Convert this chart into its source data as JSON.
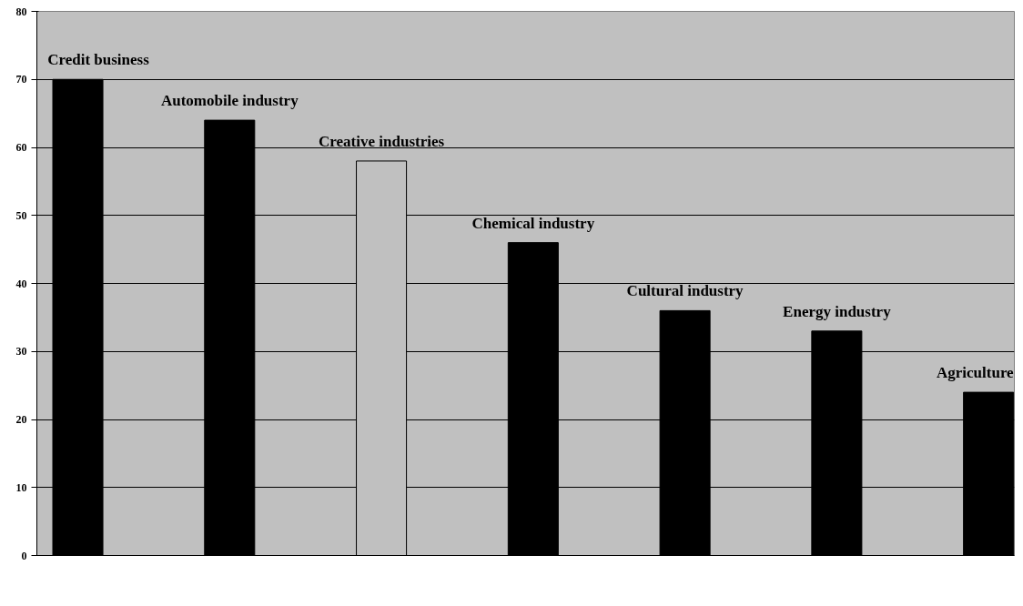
{
  "chart_data": {
    "type": "bar",
    "categories": [
      "Credit business",
      "Automobile industry",
      "Creative industries",
      "Chemical industry",
      "Cultural industry",
      "Energy industry",
      "Agriculture"
    ],
    "values": [
      70,
      64,
      58,
      46,
      36,
      33,
      24
    ],
    "colors": [
      "#000000",
      "#000000",
      "#c0c0c0",
      "#000000",
      "#000000",
      "#000000",
      "#000000"
    ],
    "ylim": [
      0,
      80
    ],
    "yticks": [
      0,
      10,
      20,
      30,
      40,
      50,
      60,
      70,
      80
    ],
    "grid": "y",
    "tick_labels": "y"
  }
}
